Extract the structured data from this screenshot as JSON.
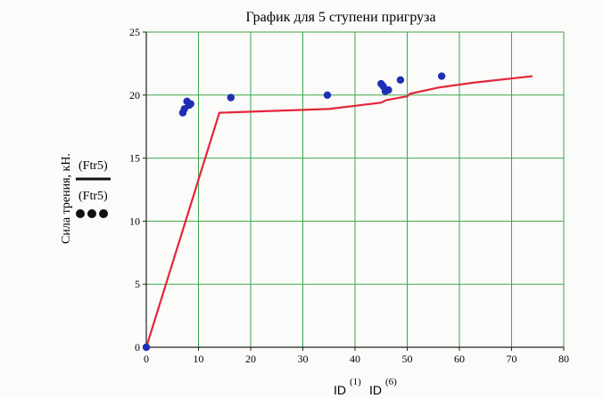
{
  "colors": {
    "line": "#e3263a",
    "points": "#1f2fb5",
    "grid": "#3aa94a",
    "axis": "#222222",
    "background": "#fbfbf9"
  },
  "chart_data": {
    "type": "scatter",
    "title": "График для 5 ступени пригруза",
    "ylabel": "Сила трения, кН.",
    "xlabel_parts": {
      "a_base": "ID",
      "a_sup": "(1)",
      "b_base": "ID",
      "b_sup": "(6)"
    },
    "xlim": [
      0,
      80
    ],
    "ylim": [
      0,
      25
    ],
    "x_ticks": [
      0,
      10,
      20,
      30,
      40,
      50,
      60,
      70,
      80
    ],
    "y_ticks": [
      0,
      5,
      10,
      15,
      20,
      25
    ],
    "grid": true,
    "legend": [
      {
        "label": "(Ftr5)",
        "style": "line"
      },
      {
        "label": "(Ftr5)",
        "style": "dots"
      }
    ],
    "series": [
      {
        "style": "line",
        "x": [
          0,
          14,
          35,
          45,
          46,
          50,
          50.5,
          56,
          63,
          74
        ],
        "y": [
          0,
          18.6,
          18.9,
          19.4,
          19.6,
          19.9,
          20.1,
          20.6,
          21.0,
          21.5
        ]
      },
      {
        "style": "scatter",
        "x": [
          0,
          7,
          7.3,
          7.8,
          8.2,
          8.5,
          16.2,
          34.7,
          45.0,
          45.4,
          45.8,
          46.4,
          48.7,
          56.6
        ],
        "y": [
          0,
          18.6,
          18.9,
          19.5,
          19.2,
          19.3,
          19.8,
          20.0,
          20.9,
          20.7,
          20.3,
          20.4,
          21.2,
          21.5
        ]
      }
    ]
  }
}
